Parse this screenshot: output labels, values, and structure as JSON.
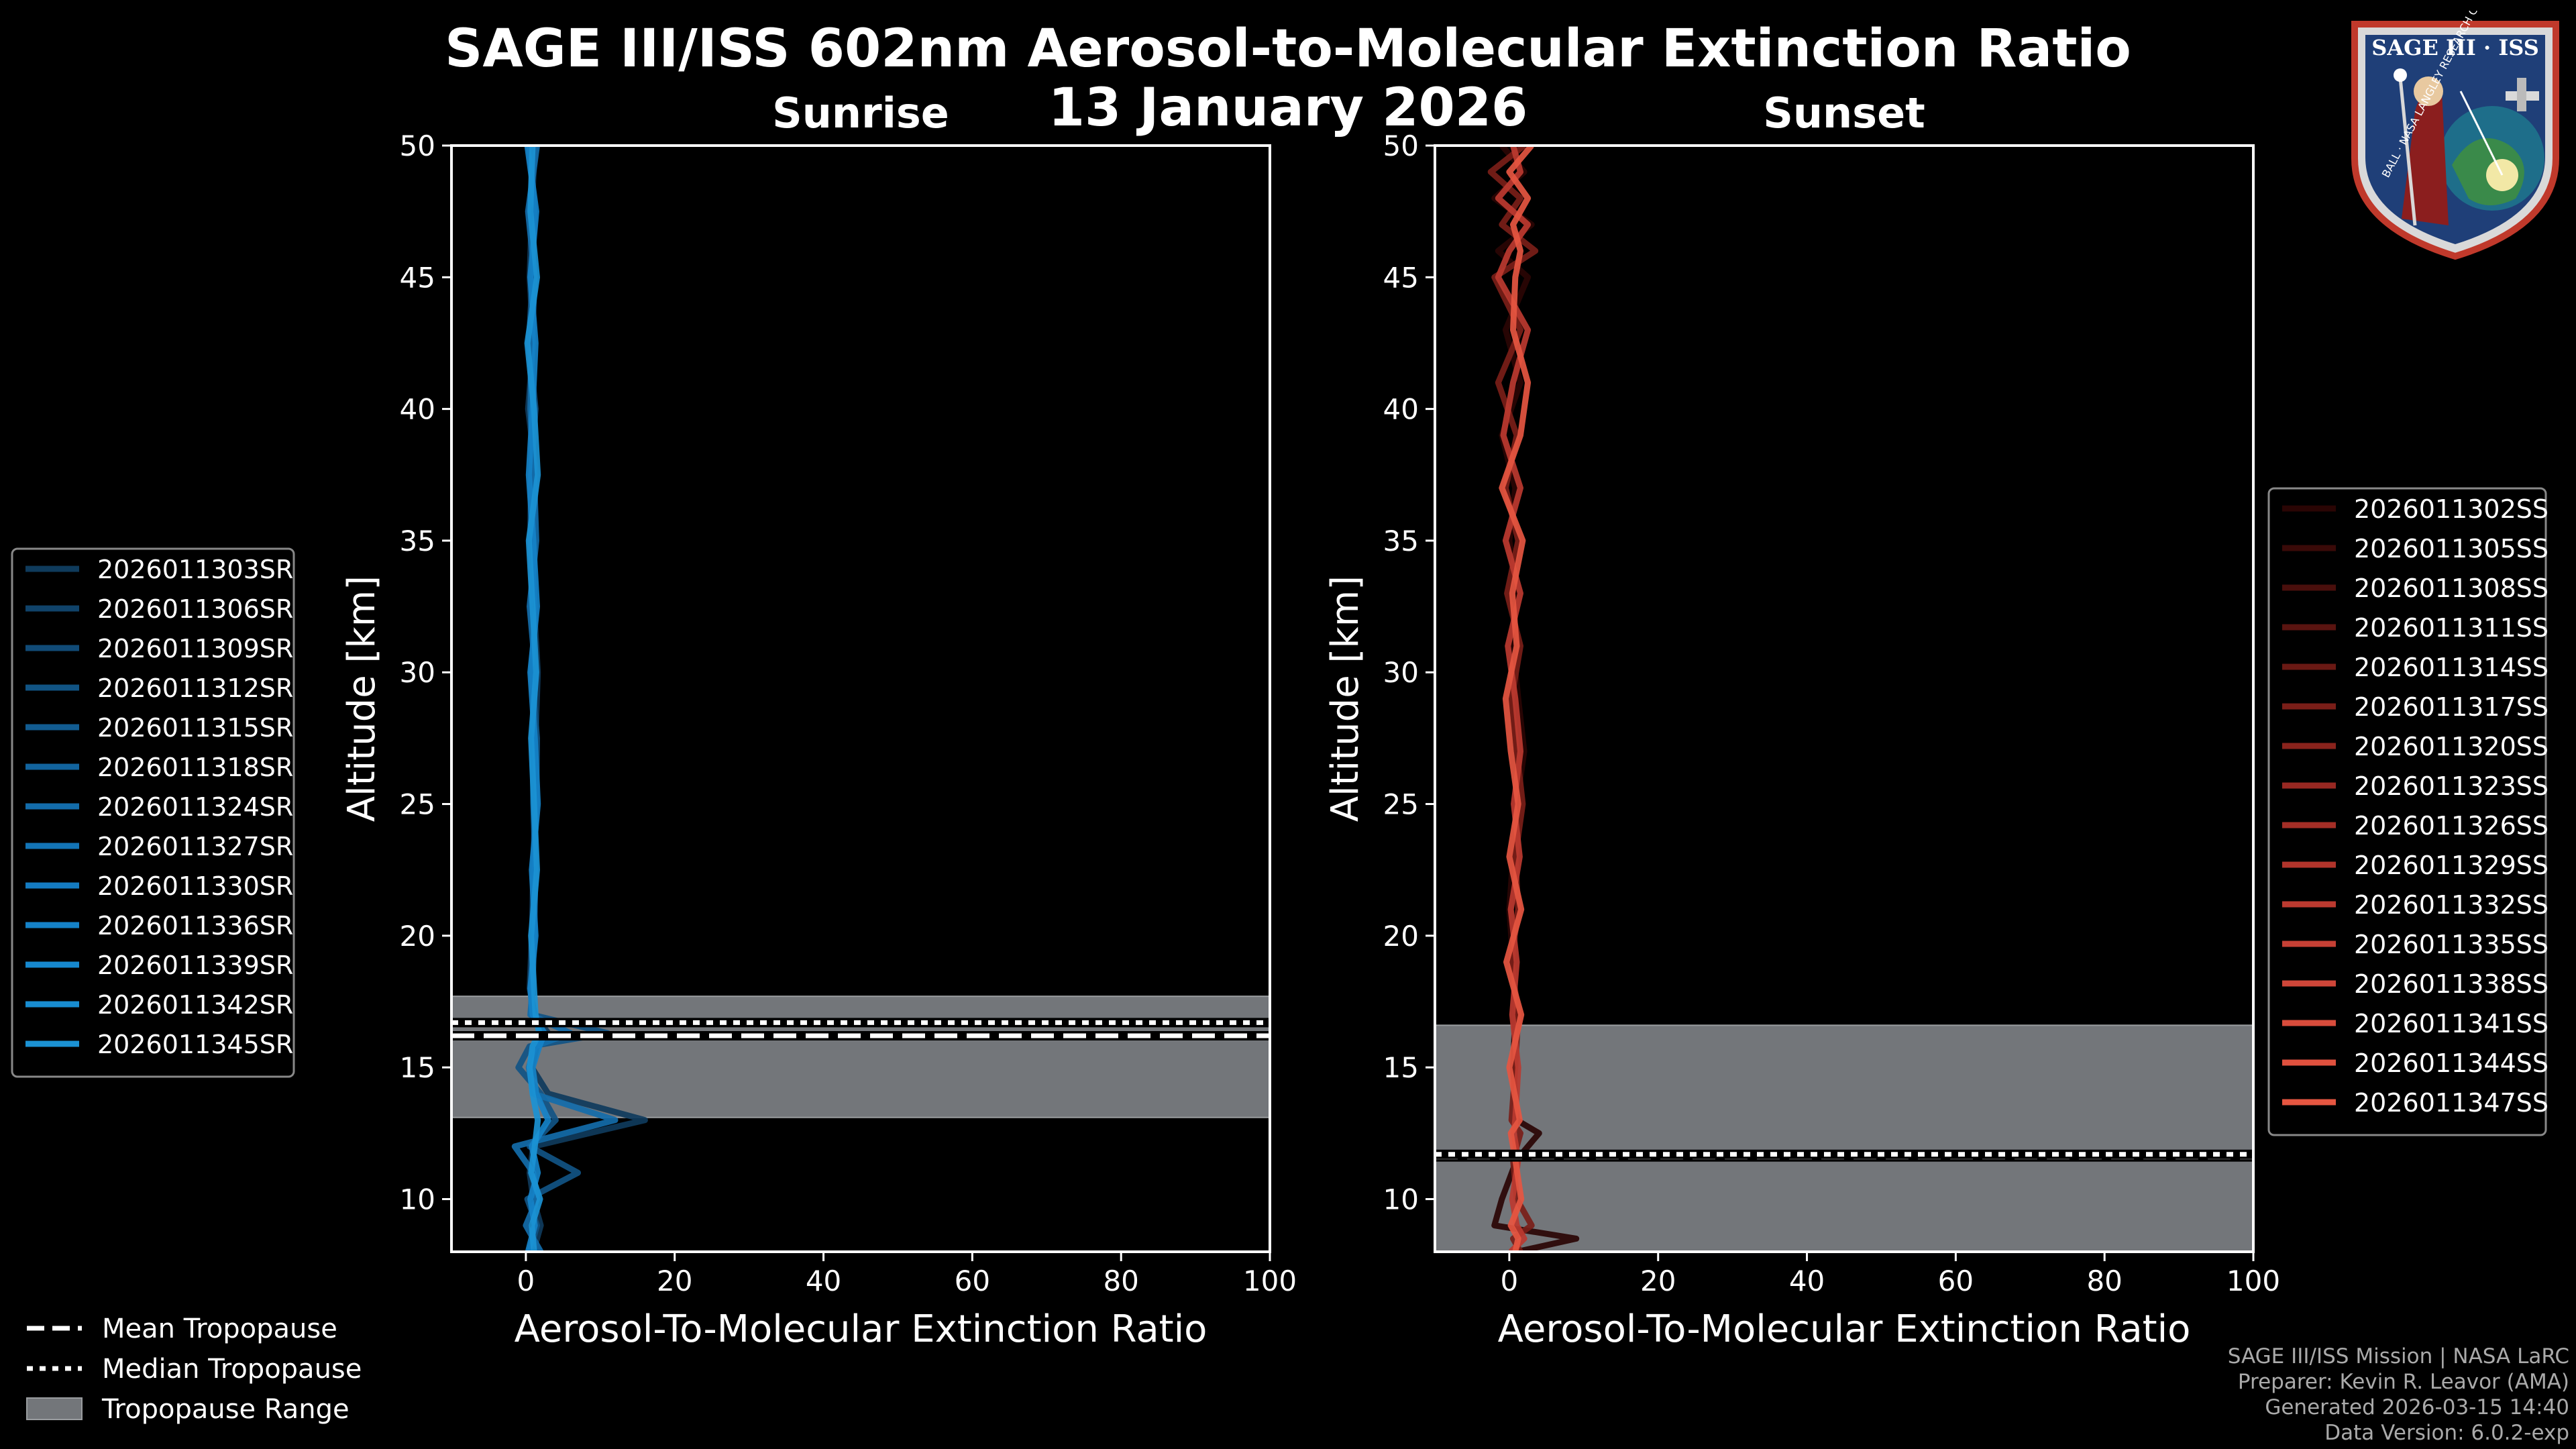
{
  "title": "SAGE III/ISS 602nm Aerosol-to-Molecular Extinction Ratio",
  "date": "13 January 2026",
  "logo": {
    "top_text": "SAGE III · ISS",
    "ring_text": "BALL · NASA LANGLEY RESEARCH CENTER · TAS-I · ESA"
  },
  "footer": {
    "mission": "SAGE III/ISS Mission | NASA LaRC",
    "preparer": "Preparer: Kevin R. Leavor (AMA)",
    "generated": "Generated 2026-03-15 14:40",
    "version": "Data Version: 6.0.2-exp"
  },
  "colors": {
    "sunrise": "#1b8fd1",
    "sunset": "#e0533f",
    "tropo_range": "#73767a",
    "background": "#000000"
  },
  "chart_data": [
    {
      "type": "line",
      "panel": "sunrise",
      "title": "Sunrise",
      "xlabel": "Aerosol-To-Molecular Extinction Ratio",
      "ylabel": "Altitude [km]",
      "xlim": [
        -10,
        100
      ],
      "ylim": [
        8,
        50
      ],
      "xticks": [
        0,
        20,
        40,
        60,
        80,
        100
      ],
      "yticks": [
        10,
        15,
        20,
        25,
        30,
        35,
        40,
        45,
        50
      ],
      "tropopause": {
        "mean": 16.2,
        "median": 16.7,
        "range": [
          13.1,
          17.7
        ]
      },
      "legend_position": "left",
      "series": [
        {
          "name": "2026011303SR",
          "color": "#0f3b5c"
        },
        {
          "name": "2026011306SR",
          "color": "#10436a"
        },
        {
          "name": "2026011309SR",
          "color": "#114b77"
        },
        {
          "name": "2026011312SR",
          "color": "#115484"
        },
        {
          "name": "2026011315SR",
          "color": "#125c91"
        },
        {
          "name": "2026011318SR",
          "color": "#12649e"
        },
        {
          "name": "2026011324SR",
          "color": "#136caa"
        },
        {
          "name": "2026011327SR",
          "color": "#1374b6"
        },
        {
          "name": "2026011330SR",
          "color": "#147bc1"
        },
        {
          "name": "2026011336SR",
          "color": "#1582c8"
        },
        {
          "name": "2026011339SR",
          "color": "#1688ce"
        },
        {
          "name": "2026011342SR",
          "color": "#188dd1"
        },
        {
          "name": "2026011345SR",
          "color": "#1b92d4"
        }
      ],
      "profile_altitudes": [
        50,
        47.5,
        45,
        42.5,
        40,
        37.5,
        35,
        32.5,
        30,
        27.5,
        25,
        22.5,
        20,
        18,
        17,
        16.3,
        15.8,
        15,
        14,
        13,
        12,
        11,
        10,
        9,
        8
      ],
      "profile_values": [
        [
          1.2,
          0.8,
          0.5,
          1.0,
          0.3,
          1.4,
          0.9,
          1.1,
          1.6,
          1.3,
          1.2,
          1.0,
          0.8,
          0.5,
          1.2,
          3.0,
          1.5,
          0.8,
          3.0,
          16.0,
          1.0,
          0.5,
          1.0,
          2.0,
          1.0
        ],
        [
          0.5,
          1.1,
          0.9,
          0.4,
          1.3,
          0.7,
          0.6,
          1.2,
          0.8,
          1.5,
          1.4,
          1.1,
          0.9,
          0.7,
          0.8,
          11.0,
          0.5,
          -1.0,
          2.0,
          4.0,
          0.5,
          7.0,
          0.2,
          1.5,
          0.5
        ],
        [
          1.5,
          0.3,
          1.2,
          0.8,
          0.6,
          1.1,
          1.4,
          0.5,
          1.3,
          0.9,
          1.0,
          1.3,
          1.1,
          0.9,
          0.6,
          6.0,
          1.2,
          0.4,
          1.0,
          12.0,
          -1.5,
          1.0,
          1.5,
          0.0,
          2.0
        ],
        [
          0.2,
          1.4,
          0.6,
          1.3,
          0.9,
          0.4,
          1.0,
          1.5,
          0.6,
          1.2,
          1.6,
          0.8,
          1.3,
          0.6,
          0.9,
          2.5,
          1.8,
          0.9,
          1.4,
          3.0,
          0.8,
          1.6,
          0.6,
          1.2,
          0.3
        ],
        [
          0.9,
          0.6,
          1.5,
          0.2,
          1.1,
          1.6,
          0.4,
          0.9,
          1.4,
          0.7,
          1.1,
          1.5,
          0.7,
          1.1,
          1.3,
          1.8,
          0.9,
          0.5,
          0.9,
          1.6,
          1.2,
          0.7,
          1.9,
          0.8,
          1.1
        ]
      ]
    },
    {
      "type": "line",
      "panel": "sunset",
      "title": "Sunset",
      "xlabel": "Aerosol-To-Molecular Extinction Ratio",
      "ylabel": "Altitude [km]",
      "xlim": [
        -10,
        100
      ],
      "ylim": [
        8,
        50
      ],
      "xticks": [
        0,
        20,
        40,
        60,
        80,
        100
      ],
      "yticks": [
        10,
        15,
        20,
        25,
        30,
        35,
        40,
        45,
        50
      ],
      "tropopause": {
        "mean": 11.6,
        "median": 11.7,
        "range": [
          8,
          16.6
        ]
      },
      "legend_position": "right",
      "series": [
        {
          "name": "2026011302SS",
          "color": "#2a0504"
        },
        {
          "name": "2026011305SS",
          "color": "#3a0a08"
        },
        {
          "name": "2026011308SS",
          "color": "#4a0f0c"
        },
        {
          "name": "2026011311SS",
          "color": "#5a1410"
        },
        {
          "name": "2026011314SS",
          "color": "#6a1914"
        },
        {
          "name": "2026011317SS",
          "color": "#7a1e18"
        },
        {
          "name": "2026011320SS",
          "color": "#8a231c"
        },
        {
          "name": "2026011323SS",
          "color": "#982822"
        },
        {
          "name": "2026011326SS",
          "color": "#a52e26"
        },
        {
          "name": "2026011329SS",
          "color": "#b1342b"
        },
        {
          "name": "2026011332SS",
          "color": "#bc3a30"
        },
        {
          "name": "2026011335SS",
          "color": "#c64035"
        },
        {
          "name": "2026011338SS",
          "color": "#cf4639"
        },
        {
          "name": "2026011341SS",
          "color": "#d84c3c"
        },
        {
          "name": "2026011344SS",
          "color": "#e0513e"
        },
        {
          "name": "2026011347SS",
          "color": "#e65641"
        }
      ],
      "profile_altitudes": [
        50,
        49,
        48,
        47,
        46,
        45,
        43,
        41,
        39,
        37,
        35,
        33,
        31,
        29,
        27,
        25,
        23,
        21,
        19,
        17,
        15,
        13,
        12.5,
        11.5,
        10,
        9,
        8.5,
        8
      ],
      "profile_values": [
        [
          -1.0,
          2.0,
          -2.0,
          3.0,
          -1.5,
          2.5,
          -0.5,
          1.5,
          -1.0,
          0.8,
          0.0,
          1.0,
          0.5,
          1.2,
          2.0,
          1.0,
          0.5,
          0.0,
          0.5,
          0.8,
          0.5,
          1.0,
          4.0,
          1.0,
          -1.0,
          -2.0,
          9.0,
          1.0
        ],
        [
          2.0,
          -2.5,
          1.5,
          -1.0,
          3.5,
          -2.0,
          1.5,
          -1.5,
          1.0,
          -0.5,
          1.2,
          -0.3,
          1.5,
          0.3,
          1.0,
          1.8,
          0.8,
          1.2,
          0.3,
          1.2,
          0.8,
          0.3,
          1.5,
          0.5,
          1.0,
          3.0,
          0.5,
          1.5
        ],
        [
          0.5,
          1.5,
          -1.5,
          2.5,
          0.0,
          -1.5,
          2.5,
          0.5,
          -0.8,
          1.5,
          -0.5,
          1.5,
          -0.2,
          0.8,
          1.5,
          0.6,
          1.4,
          0.2,
          1.0,
          0.4,
          1.2,
          0.8,
          0.6,
          1.2,
          0.4,
          1.0,
          2.0,
          0.2
        ],
        [
          3.0,
          0.0,
          2.5,
          0.5,
          1.5,
          0.8,
          0.5,
          2.5,
          1.5,
          -1.0,
          1.8,
          0.4,
          1.0,
          -0.5,
          0.2,
          1.2,
          0.0,
          1.6,
          -0.4,
          1.6,
          0.0,
          1.4,
          0.2,
          0.8,
          1.6,
          0.2,
          1.2,
          0.8
        ]
      ]
    }
  ],
  "shared_legend": {
    "mean": "Mean Tropopause",
    "median": "Median Tropopause",
    "range": "Tropopause Range"
  }
}
